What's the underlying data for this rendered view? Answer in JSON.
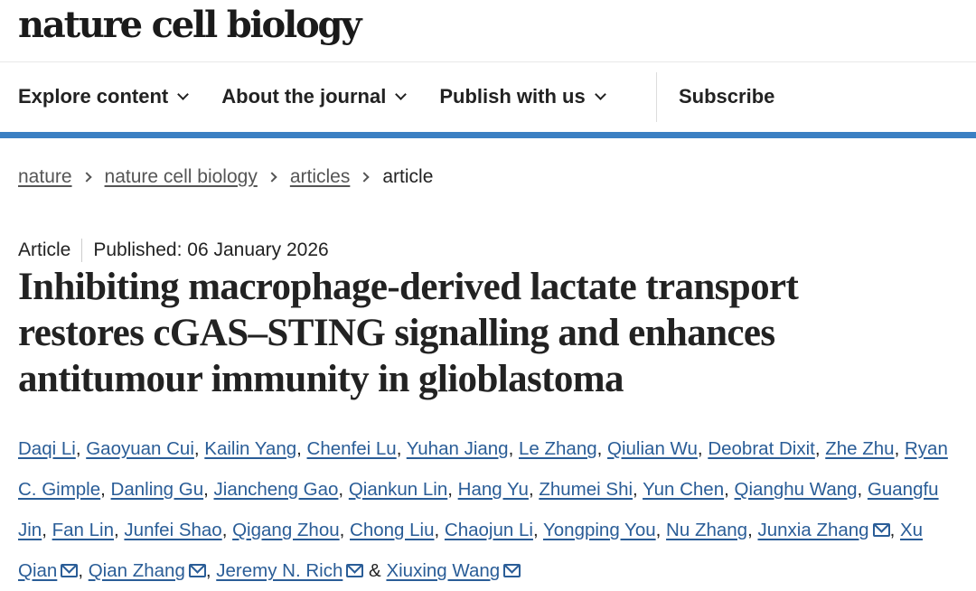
{
  "header": {
    "logo": "nature cell biology"
  },
  "nav": {
    "items": [
      {
        "label": "Explore content"
      },
      {
        "label": "About the journal"
      },
      {
        "label": "Publish with us"
      }
    ],
    "subscribe": "Subscribe"
  },
  "breadcrumb": [
    "nature",
    "nature cell biology",
    "articles",
    "article"
  ],
  "article": {
    "type": "Article",
    "published": "Published: 06 January 2026",
    "title_lines": [
      "Inhibiting macrophage-derived lactate transport",
      "restores cGAS–STING signalling and enhances",
      "antitumour immunity in glioblastoma"
    ],
    "authors": [
      {
        "name": "Daqi Li"
      },
      {
        "name": "Gaoyuan Cui"
      },
      {
        "name": "Kailin Yang"
      },
      {
        "name": "Chenfei Lu"
      },
      {
        "name": "Yuhan Jiang"
      },
      {
        "name": "Le Zhang"
      },
      {
        "name": "Qiulian Wu"
      },
      {
        "name": "Deobrat Dixit"
      },
      {
        "name": "Zhe Zhu"
      },
      {
        "name": "Ryan C. Gimple"
      },
      {
        "name": "Danling Gu"
      },
      {
        "name": "Jiancheng Gao"
      },
      {
        "name": "Qiankun Lin"
      },
      {
        "name": "Hang Yu"
      },
      {
        "name": "Zhumei Shi"
      },
      {
        "name": "Yun Chen"
      },
      {
        "name": "Qianghu Wang"
      },
      {
        "name": "Guangfu Jin"
      },
      {
        "name": "Fan Lin"
      },
      {
        "name": "Junfei Shao"
      },
      {
        "name": "Qigang Zhou"
      },
      {
        "name": "Chong Liu"
      },
      {
        "name": "Chaojun Li"
      },
      {
        "name": "Yongping You"
      },
      {
        "name": "Nu Zhang"
      },
      {
        "name": "Junxia Zhang",
        "email": true
      },
      {
        "name": "Xu Qian",
        "email": true
      },
      {
        "name": "Qian Zhang",
        "email": true
      },
      {
        "name": "Jeremy N. Rich",
        "email": true
      },
      {
        "name": "Xiuxing Wang",
        "email": true
      }
    ]
  },
  "colors": {
    "accent_bar": "#3b80c3",
    "link": "#2a5d97"
  }
}
